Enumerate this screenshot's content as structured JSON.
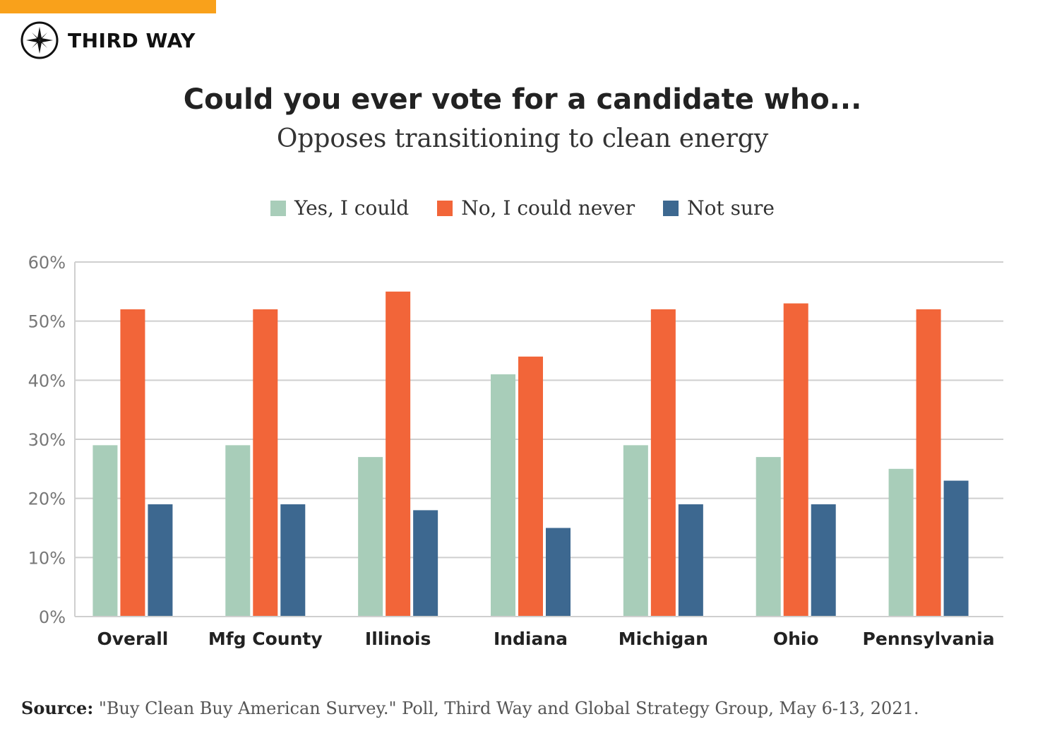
{
  "header": {
    "brand_name": "THIRD WAY",
    "logo_icon": "compass-icon",
    "accent_color": "#f9a11b"
  },
  "chart_data": {
    "type": "bar",
    "title": "Could you ever vote for a candidate who...",
    "subtitle": "Opposes transitioning to clean energy",
    "categories": [
      "Overall",
      "Mfg County",
      "Illinois",
      "Indiana",
      "Michigan",
      "Ohio",
      "Pennsylvania"
    ],
    "series": [
      {
        "name": "Yes, I could",
        "color": "#a8cdb9",
        "values": [
          29,
          29,
          27,
          41,
          29,
          27,
          25
        ]
      },
      {
        "name": "No, I could never",
        "color": "#f26539",
        "values": [
          52,
          52,
          55,
          44,
          52,
          53,
          52
        ]
      },
      {
        "name": "Not sure",
        "color": "#3d6890",
        "values": [
          19,
          19,
          18,
          15,
          19,
          19,
          23
        ]
      }
    ],
    "y_ticks": [
      "0%",
      "10%",
      "20%",
      "30%",
      "40%",
      "50%",
      "60%"
    ],
    "ylim": [
      0,
      60
    ],
    "grid": true,
    "legend_position": "top-center"
  },
  "footer": {
    "source_label": "Source:",
    "source_text": "\"Buy Clean Buy American Survey.\" Poll, Third Way and Global Strategy Group, May 6-13, 2021."
  }
}
